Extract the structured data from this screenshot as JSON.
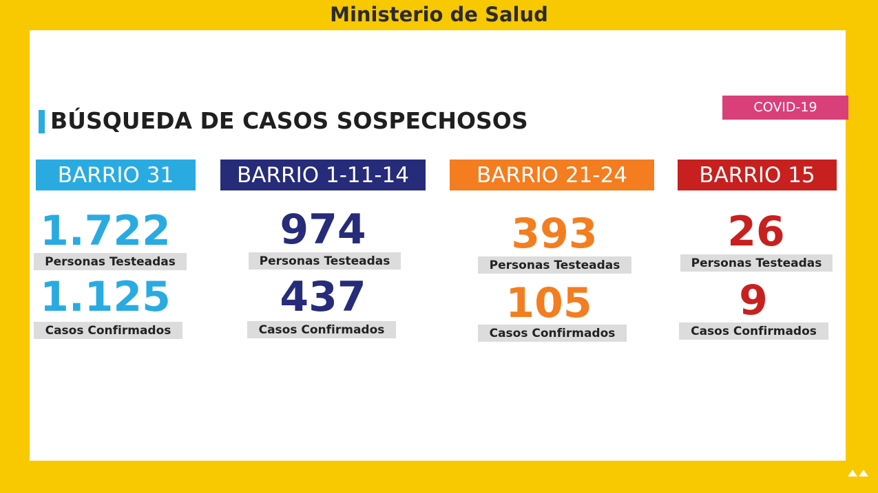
{
  "header": {
    "title": "Ministerio de Salud"
  },
  "heading": "BÚSQUEDA DE CASOS SOSPECHOSOS",
  "badge": "COVID-19",
  "barrios": [
    {
      "name": "BARRIO 31",
      "tested": "1.722",
      "tested_label": "Personas Testeadas",
      "confirmed": "1.125",
      "confirmed_label": "Casos Confirmados"
    },
    {
      "name": "BARRIO 1-11-14",
      "tested": "974",
      "tested_label": "Personas Testeadas",
      "confirmed": "437",
      "confirmed_label": "Casos Confirmados"
    },
    {
      "name": "BARRIO 21-24",
      "tested": "393",
      "tested_label": "Personas Testeadas",
      "confirmed": "105",
      "confirmed_label": "Casos Confirmados"
    },
    {
      "name": "BARRIO 15",
      "tested": "26",
      "tested_label": "Personas Testeadas",
      "confirmed": "9",
      "confirmed_label": "Casos Confirmados"
    }
  ]
}
